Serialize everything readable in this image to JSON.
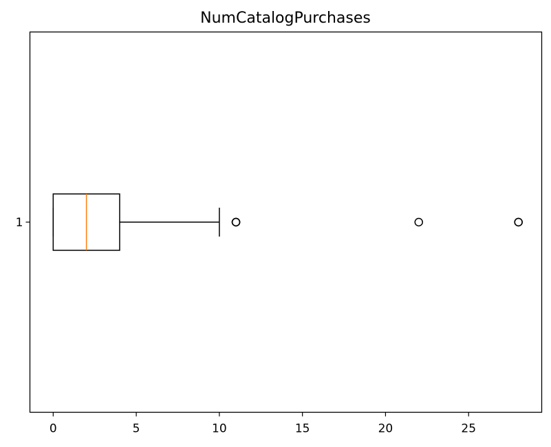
{
  "chart_data": {
    "type": "boxplot",
    "title": "NumCatalogPurchases",
    "orientation": "horizontal",
    "xlabel": "",
    "ylabel": "",
    "xlim": [
      -1.4,
      29.4
    ],
    "x_ticks": [
      0,
      5,
      10,
      15,
      20,
      25
    ],
    "categories": [
      "1"
    ],
    "boxes": [
      {
        "category": "1",
        "whisker_low": 0,
        "q1": 0,
        "median": 2,
        "q3": 4,
        "whisker_high": 10,
        "outliers": [
          11,
          11,
          11,
          22,
          28,
          28
        ]
      }
    ],
    "grid": false,
    "colors": {
      "box": "#000000",
      "median": "#ff7f0e",
      "outlier": "#000000"
    }
  }
}
